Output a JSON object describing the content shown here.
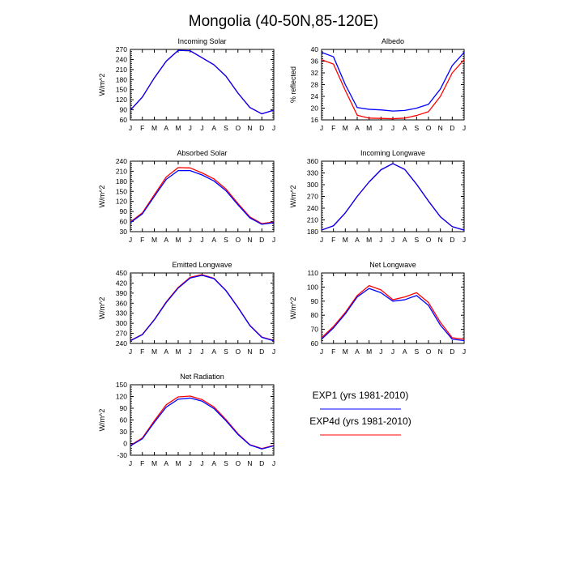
{
  "figure": {
    "title": "Mongolia (40-50N,85-120E)"
  },
  "colors": {
    "exp1": "#0000ff",
    "exp4d": "#ff0000",
    "axis": "#000000"
  },
  "legend": {
    "entries": [
      {
        "label": "EXP1 (yrs 1981-2010)",
        "color": "#0000ff"
      },
      {
        "label": "EXP4d (yrs 1981-2010)",
        "color": "#ff0000"
      }
    ]
  },
  "chart_data": [
    {
      "type": "line",
      "title": "Incoming Solar",
      "ylabel": "W/m^2",
      "categories": [
        "J",
        "F",
        "M",
        "A",
        "M",
        "J",
        "J",
        "A",
        "S",
        "O",
        "N",
        "D",
        "J"
      ],
      "ylim": [
        60,
        270
      ],
      "yticks": [
        60,
        90,
        120,
        150,
        180,
        210,
        240,
        270
      ],
      "series": [
        {
          "name": "EXP1 (yrs 1981-2010)",
          "color": "#0000ff",
          "values": [
            89,
            128,
            185,
            235,
            267,
            266,
            245,
            224,
            190,
            140,
            97,
            78,
            89
          ]
        },
        {
          "name": "EXP4d (yrs 1981-2010)",
          "color": "#ff0000",
          "values": [
            89,
            128,
            185,
            235,
            267,
            266,
            245,
            224,
            190,
            140,
            97,
            78,
            89
          ]
        }
      ]
    },
    {
      "type": "line",
      "title": "Albedo",
      "ylabel": "% reflected",
      "categories": [
        "J",
        "F",
        "M",
        "A",
        "M",
        "J",
        "J",
        "A",
        "S",
        "O",
        "N",
        "D",
        "J"
      ],
      "ylim": [
        16,
        40
      ],
      "yticks": [
        16,
        20,
        24,
        28,
        32,
        36,
        40
      ],
      "series": [
        {
          "name": "EXP1 (yrs 1981-2010)",
          "color": "#0000ff",
          "values": [
            39.0,
            37.5,
            28.0,
            20.2,
            19.6,
            19.4,
            19.0,
            19.2,
            20.0,
            21.3,
            26.5,
            34.5,
            39.0
          ]
        },
        {
          "name": "EXP4d (yrs 1981-2010)",
          "color": "#ff0000",
          "values": [
            36.5,
            35.0,
            26.0,
            17.6,
            16.6,
            16.5,
            16.4,
            16.6,
            17.5,
            18.8,
            24.0,
            32.0,
            36.5
          ]
        }
      ]
    },
    {
      "type": "line",
      "title": "Absorbed Solar",
      "ylabel": "W/m^2",
      "categories": [
        "J",
        "F",
        "M",
        "A",
        "M",
        "J",
        "J",
        "A",
        "S",
        "O",
        "N",
        "D",
        "J"
      ],
      "ylim": [
        30,
        240
      ],
      "yticks": [
        30,
        60,
        90,
        120,
        150,
        180,
        210,
        240
      ],
      "series": [
        {
          "name": "EXP1 (yrs 1981-2010)",
          "color": "#0000ff",
          "values": [
            57,
            83,
            135,
            186,
            212,
            212,
            199,
            181,
            152,
            110,
            71,
            52,
            57
          ]
        },
        {
          "name": "EXP4d (yrs 1981-2010)",
          "color": "#ff0000",
          "values": [
            59,
            86,
            140,
            193,
            221,
            220,
            205,
            187,
            157,
            114,
            74,
            54,
            59
          ]
        }
      ]
    },
    {
      "type": "line",
      "title": "Incoming Longwave",
      "ylabel": "W/m^2",
      "categories": [
        "J",
        "F",
        "M",
        "A",
        "M",
        "J",
        "J",
        "A",
        "S",
        "O",
        "N",
        "D",
        "J"
      ],
      "ylim": [
        180,
        360
      ],
      "yticks": [
        180,
        210,
        240,
        270,
        300,
        330,
        360
      ],
      "series": [
        {
          "name": "EXP1 (yrs 1981-2010)",
          "color": "#0000ff",
          "values": [
            184,
            195,
            228,
            270,
            307,
            338,
            354,
            339,
            301,
            258,
            218,
            193,
            184
          ]
        },
        {
          "name": "EXP4d (yrs 1981-2010)",
          "color": "#ff0000",
          "values": [
            184,
            195,
            228,
            270,
            307,
            338,
            354,
            339,
            301,
            258,
            218,
            193,
            184
          ]
        }
      ]
    },
    {
      "type": "line",
      "title": "Emitted Longwave",
      "ylabel": "W/m^2",
      "categories": [
        "J",
        "F",
        "M",
        "A",
        "M",
        "J",
        "J",
        "A",
        "S",
        "O",
        "N",
        "D",
        "J"
      ],
      "ylim": [
        240,
        450
      ],
      "yticks": [
        240,
        270,
        300,
        330,
        360,
        390,
        420,
        450
      ],
      "series": [
        {
          "name": "EXP1 (yrs 1981-2010)",
          "color": "#0000ff",
          "values": [
            248,
            266,
            310,
            362,
            405,
            435,
            443,
            433,
            397,
            347,
            293,
            258,
            248
          ]
        },
        {
          "name": "EXP4d (yrs 1981-2010)",
          "color": "#ff0000",
          "values": [
            249,
            267,
            311,
            364,
            407,
            437,
            445,
            434,
            398,
            348,
            294,
            259,
            249
          ]
        }
      ]
    },
    {
      "type": "line",
      "title": "Net Longwave",
      "ylabel": "W/m^2",
      "categories": [
        "J",
        "F",
        "M",
        "A",
        "M",
        "J",
        "J",
        "A",
        "S",
        "O",
        "N",
        "D",
        "J"
      ],
      "ylim": [
        60,
        110
      ],
      "yticks": [
        60,
        70,
        80,
        90,
        100,
        110
      ],
      "series": [
        {
          "name": "EXP1 (yrs 1981-2010)",
          "color": "#0000ff",
          "values": [
            63,
            71,
            81,
            93,
            99,
            96,
            90,
            91,
            94,
            87,
            73,
            63,
            62
          ]
        },
        {
          "name": "EXP4d (yrs 1981-2010)",
          "color": "#ff0000",
          "values": [
            64,
            72,
            82,
            94,
            101,
            98,
            91,
            93,
            96,
            89,
            75,
            64,
            63
          ]
        }
      ]
    },
    {
      "type": "line",
      "title": "Net Radiation",
      "ylabel": "W/m^2",
      "categories": [
        "J",
        "F",
        "M",
        "A",
        "M",
        "J",
        "J",
        "A",
        "S",
        "O",
        "N",
        "D",
        "J"
      ],
      "ylim": [
        -30,
        150
      ],
      "yticks": [
        -30,
        0,
        30,
        60,
        90,
        120,
        150
      ],
      "series": [
        {
          "name": "EXP1 (yrs 1981-2010)",
          "color": "#0000ff",
          "values": [
            -6,
            12,
            54,
            93,
            113,
            116,
            108,
            89,
            58,
            23,
            -4,
            -14,
            -6
          ]
        },
        {
          "name": "EXP4d (yrs 1981-2010)",
          "color": "#ff0000",
          "values": [
            -5,
            14,
            58,
            99,
            119,
            121,
            112,
            93,
            61,
            25,
            -3,
            -13,
            -5
          ]
        }
      ]
    }
  ]
}
